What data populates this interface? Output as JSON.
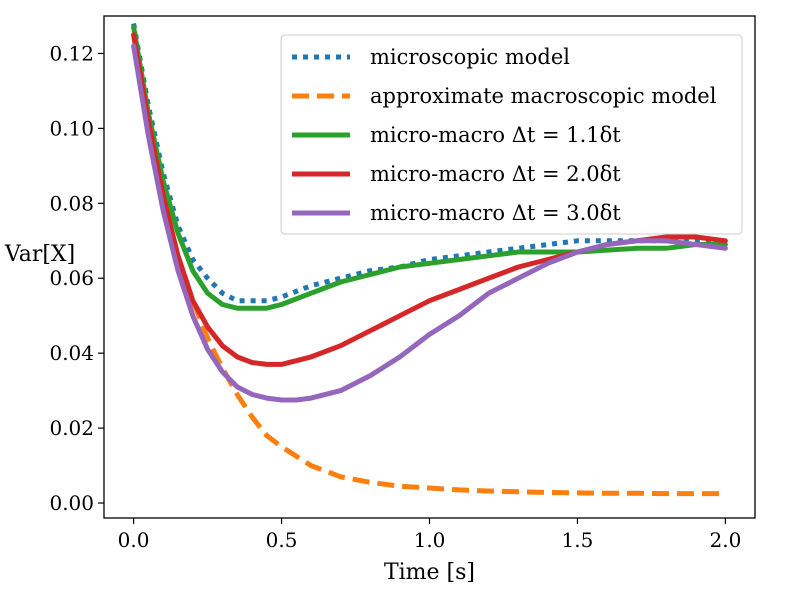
{
  "chart_data": {
    "type": "line",
    "title": "",
    "xlabel": "Time [s]",
    "ylabel": "Var[X]",
    "xlim": [
      -0.1,
      2.1
    ],
    "ylim": [
      -0.004,
      0.13
    ],
    "xticks": [
      0.0,
      0.5,
      1.0,
      1.5,
      2.0
    ],
    "xtick_labels": [
      "0.0",
      "0.5",
      "1.0",
      "1.5",
      "2.0"
    ],
    "yticks": [
      0.0,
      0.02,
      0.04,
      0.06,
      0.08,
      0.1,
      0.12
    ],
    "ytick_labels": [
      "0.00",
      "0.02",
      "0.04",
      "0.06",
      "0.08",
      "0.10",
      "0.12"
    ],
    "grid": false,
    "legend_position": "top-right",
    "series": [
      {
        "name": "microscopic model",
        "color": "#1f77b4",
        "style": "dotted",
        "x": [
          0.0,
          0.05,
          0.1,
          0.15,
          0.2,
          0.25,
          0.3,
          0.35,
          0.4,
          0.45,
          0.5,
          0.6,
          0.7,
          0.8,
          0.9,
          1.0,
          1.1,
          1.2,
          1.3,
          1.4,
          1.5,
          1.6,
          1.7,
          1.8,
          1.9,
          2.0
        ],
        "y": [
          0.128,
          0.106,
          0.088,
          0.074,
          0.065,
          0.06,
          0.056,
          0.054,
          0.054,
          0.054,
          0.055,
          0.058,
          0.06,
          0.062,
          0.063,
          0.065,
          0.066,
          0.067,
          0.068,
          0.069,
          0.07,
          0.07,
          0.07,
          0.07,
          0.07,
          0.069
        ]
      },
      {
        "name": "approximate macroscopic model",
        "color": "#ff7f0e",
        "style": "dashed",
        "x": [
          0.0,
          0.05,
          0.1,
          0.15,
          0.2,
          0.25,
          0.3,
          0.35,
          0.4,
          0.45,
          0.5,
          0.6,
          0.7,
          0.8,
          0.9,
          1.0,
          1.1,
          1.2,
          1.3,
          1.4,
          1.5,
          1.6,
          1.7,
          1.8,
          1.9,
          2.0
        ],
        "y": [
          0.125,
          0.1,
          0.081,
          0.066,
          0.054,
          0.044,
          0.036,
          0.029,
          0.023,
          0.018,
          0.015,
          0.01,
          0.007,
          0.0055,
          0.0045,
          0.004,
          0.0035,
          0.0032,
          0.003,
          0.0028,
          0.0027,
          0.0026,
          0.0026,
          0.0025,
          0.0025,
          0.0025
        ]
      },
      {
        "name": "micro-macro Δt = 1.1δt",
        "color": "#2ca02c",
        "style": "solid",
        "x": [
          0.0,
          0.05,
          0.1,
          0.15,
          0.2,
          0.25,
          0.3,
          0.35,
          0.4,
          0.45,
          0.5,
          0.6,
          0.7,
          0.8,
          0.9,
          1.0,
          1.1,
          1.2,
          1.3,
          1.4,
          1.5,
          1.6,
          1.7,
          1.8,
          1.9,
          2.0
        ],
        "y": [
          0.127,
          0.104,
          0.086,
          0.072,
          0.062,
          0.056,
          0.053,
          0.052,
          0.052,
          0.052,
          0.053,
          0.056,
          0.059,
          0.061,
          0.063,
          0.064,
          0.065,
          0.066,
          0.067,
          0.067,
          0.067,
          0.0675,
          0.068,
          0.068,
          0.069,
          0.069
        ]
      },
      {
        "name": "micro-macro Δt = 2.0δt",
        "color": "#d62728",
        "style": "solid",
        "x": [
          0.0,
          0.05,
          0.1,
          0.15,
          0.2,
          0.25,
          0.3,
          0.35,
          0.4,
          0.45,
          0.5,
          0.55,
          0.6,
          0.7,
          0.8,
          0.9,
          1.0,
          1.1,
          1.2,
          1.3,
          1.4,
          1.5,
          1.6,
          1.7,
          1.8,
          1.9,
          2.0
        ],
        "y": [
          0.125,
          0.102,
          0.082,
          0.066,
          0.054,
          0.047,
          0.042,
          0.039,
          0.0375,
          0.037,
          0.037,
          0.038,
          0.039,
          0.042,
          0.046,
          0.05,
          0.054,
          0.057,
          0.06,
          0.063,
          0.065,
          0.067,
          0.069,
          0.07,
          0.071,
          0.071,
          0.07
        ]
      },
      {
        "name": "micro-macro Δt = 3.0δt",
        "color": "#9467bd",
        "style": "solid",
        "x": [
          0.0,
          0.05,
          0.1,
          0.15,
          0.2,
          0.25,
          0.3,
          0.35,
          0.4,
          0.45,
          0.5,
          0.55,
          0.6,
          0.7,
          0.8,
          0.9,
          1.0,
          1.1,
          1.2,
          1.3,
          1.4,
          1.5,
          1.6,
          1.7,
          1.8,
          1.9,
          2.0
        ],
        "y": [
          0.122,
          0.098,
          0.078,
          0.062,
          0.05,
          0.041,
          0.035,
          0.031,
          0.029,
          0.028,
          0.0275,
          0.0275,
          0.028,
          0.03,
          0.034,
          0.039,
          0.045,
          0.05,
          0.056,
          0.06,
          0.064,
          0.067,
          0.069,
          0.07,
          0.07,
          0.069,
          0.068
        ]
      }
    ]
  }
}
